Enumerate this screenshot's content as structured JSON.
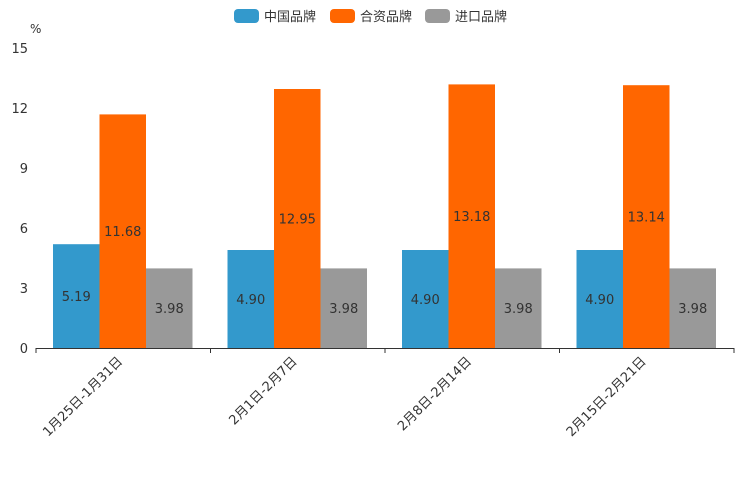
{
  "chart_data": {
    "type": "bar",
    "title": "",
    "ylabel": "%",
    "xlabel": "",
    "ylim": [
      0,
      15
    ],
    "yticks": [
      0,
      3,
      6,
      9,
      12,
      15
    ],
    "grid": false,
    "legend_position": "top-center",
    "categories": [
      "1月25日-1月31日",
      "2月1日-2月7日",
      "2月8日-2月14日",
      "2月15日-2月21日"
    ],
    "series": [
      {
        "name": "中国品牌",
        "color": "#3399cc",
        "values": [
          5.19,
          4.9,
          4.9,
          4.9
        ],
        "labels": [
          "5.19",
          "4.90",
          "4.90",
          "4.90"
        ]
      },
      {
        "name": "合资品牌",
        "color": "#ff6600",
        "values": [
          11.68,
          12.95,
          13.18,
          13.14
        ],
        "labels": [
          "11.68",
          "12.95",
          "13.18",
          "13.14"
        ]
      },
      {
        "name": "进口品牌",
        "color": "#999999",
        "values": [
          3.98,
          3.98,
          3.98,
          3.98
        ],
        "labels": [
          "3.98",
          "3.98",
          "3.98",
          "3.98"
        ]
      }
    ]
  }
}
